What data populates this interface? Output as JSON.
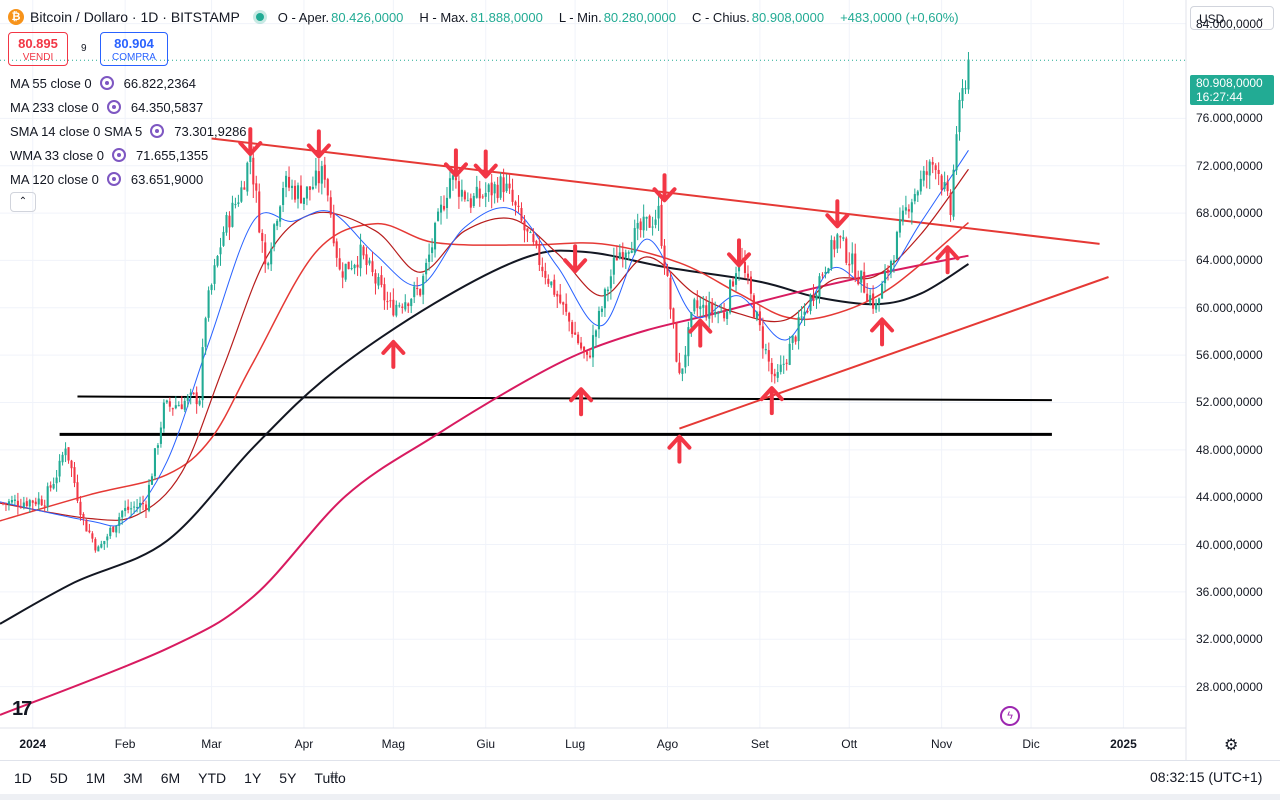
{
  "header": {
    "symbol_title": "Bitcoin / Dollaro · 1D · BITSTAMP",
    "logo_glyph": "₿",
    "ohlc": [
      {
        "label": "O - Aper.",
        "value": "80.426,0000"
      },
      {
        "label": "H - Max.",
        "value": "81.888,0000"
      },
      {
        "label": "L - Min.",
        "value": "80.280,0000"
      },
      {
        "label": "C - Chius.",
        "value": "80.908,0000"
      }
    ],
    "change": "+483,0000 (+0,60%)"
  },
  "trade": {
    "sell_price": "80.895",
    "sell_label": "VENDI",
    "spread": "9",
    "buy_price": "80.904",
    "buy_label": "COMPRA"
  },
  "indicators": [
    {
      "name": "MA 55 close 0",
      "value": "66.822,2364",
      "color": "#e91e63"
    },
    {
      "name": "MA 233 close 0",
      "value": "64.350,5837",
      "color": "#c2185b"
    },
    {
      "name": "SMA 14 close 0 SMA 5",
      "value": "73.301,9286",
      "color": "#2962ff"
    },
    {
      "name": "WMA 33 close 0",
      "value": "71.655,1355",
      "color": "#b71c1c"
    },
    {
      "name": "MA 120 close 0",
      "value": "63.651,9000",
      "color": "#131722"
    }
  ],
  "collapse_glyph": "⌃",
  "currency": {
    "value": "USD",
    "chevron": "⌄"
  },
  "last_price": {
    "price": "80.908,0000",
    "countdown": "16:27:44"
  },
  "bottom": {
    "timeframes": [
      "1D",
      "5D",
      "1M",
      "3M",
      "6M",
      "YTD",
      "1Y",
      "5Y",
      "Tutto"
    ],
    "clock": "08:32:15 (UTC+1)",
    "tv_logo": "17",
    "bolt_glyph": "ϟ",
    "gear_glyph": "⚙",
    "calendar_glyph": "⌗"
  },
  "colors": {
    "up": "#22ab94",
    "down": "#f23645",
    "annotation": "#f23645",
    "trendline": "#e53935",
    "grid": "#f0f3fa"
  },
  "chart_data": {
    "type": "candlestick",
    "y_ticks": [
      "84.000,0000",
      "76.000,0000",
      "72.000,0000",
      "68.000,0000",
      "64.000,0000",
      "60.000,0000",
      "56.000,0000",
      "52.000,0000",
      "48.000,0000",
      "44.000,0000",
      "40.000,0000",
      "36.000,0000",
      "32.000,0000",
      "28.000,0000"
    ],
    "y_tick_values": [
      84000,
      76000,
      72000,
      68000,
      64000,
      60000,
      56000,
      52000,
      48000,
      44000,
      40000,
      36000,
      32000,
      28000
    ],
    "x_ticks": [
      "2024",
      "Feb",
      "Mar",
      "Apr",
      "Mag",
      "Giu",
      "Lug",
      "Ago",
      "Set",
      "Ott",
      "Nov",
      "Dic",
      "2025"
    ],
    "x_tick_dates": [
      "2024-01-01",
      "2024-02-01",
      "2024-03-01",
      "2024-04-01",
      "2024-05-01",
      "2024-06-01",
      "2024-07-01",
      "2024-08-01",
      "2024-09-01",
      "2024-10-01",
      "2024-11-01",
      "2024-12-01",
      "2025-01-01"
    ],
    "x_range": [
      "2023-12-21",
      "2025-01-22"
    ],
    "ylim": [
      24500,
      86000
    ],
    "price_path": [
      [
        "2023-12-22",
        43500
      ],
      [
        "2024-01-05",
        43800
      ],
      [
        "2024-01-10",
        46500
      ],
      [
        "2024-01-12",
        48500
      ],
      [
        "2024-01-18",
        42000
      ],
      [
        "2024-01-23",
        39500
      ],
      [
        "2024-01-31",
        42800
      ],
      [
        "2024-02-08",
        43500
      ],
      [
        "2024-02-14",
        51500
      ],
      [
        "2024-02-20",
        52000
      ],
      [
        "2024-02-26",
        52500
      ],
      [
        "2024-02-28",
        59500
      ],
      [
        "2024-03-05",
        66500
      ],
      [
        "2024-03-11",
        70000
      ],
      [
        "2024-03-14",
        73000
      ],
      [
        "2024-03-19",
        63500
      ],
      [
        "2024-03-25",
        70500
      ],
      [
        "2024-04-01",
        69500
      ],
      [
        "2024-04-08",
        71500
      ],
      [
        "2024-04-13",
        63000
      ],
      [
        "2024-04-20",
        64500
      ],
      [
        "2024-04-30",
        60000
      ],
      [
        "2024-05-10",
        61500
      ],
      [
        "2024-05-20",
        71000
      ],
      [
        "2024-05-27",
        69000
      ],
      [
        "2024-06-07",
        70500
      ],
      [
        "2024-06-15",
        66000
      ],
      [
        "2024-06-25",
        61000
      ],
      [
        "2024-07-05",
        55500
      ],
      [
        "2024-07-15",
        64500
      ],
      [
        "2024-07-29",
        68000
      ],
      [
        "2024-08-05",
        54000
      ],
      [
        "2024-08-10",
        60000
      ],
      [
        "2024-08-20",
        59500
      ],
      [
        "2024-08-25",
        64500
      ],
      [
        "2024-09-06",
        53500
      ],
      [
        "2024-09-15",
        59000
      ],
      [
        "2024-09-27",
        66000
      ],
      [
        "2024-10-10",
        60000
      ],
      [
        "2024-10-21",
        69000
      ],
      [
        "2024-10-30",
        72500
      ],
      [
        "2024-11-04",
        68000
      ],
      [
        "2024-11-06",
        75000
      ],
      [
        "2024-11-10",
        80900
      ]
    ],
    "series": [
      {
        "name": "MA 120 close 0",
        "color": "#131722",
        "width": 2,
        "points": [
          [
            "2023-12-21",
            33300
          ],
          [
            "2024-01-15",
            36800
          ],
          [
            "2024-02-15",
            40300
          ],
          [
            "2024-03-15",
            48200
          ],
          [
            "2024-04-10",
            54400
          ],
          [
            "2024-05-15",
            60400
          ],
          [
            "2024-06-15",
            64300
          ],
          [
            "2024-07-05",
            64700
          ],
          [
            "2024-08-01",
            63400
          ],
          [
            "2024-09-01",
            62200
          ],
          [
            "2024-09-20",
            60900
          ],
          [
            "2024-10-10",
            60300
          ],
          [
            "2024-10-25",
            61200
          ],
          [
            "2024-11-10",
            63700
          ]
        ]
      },
      {
        "name": "MA 233 close 0",
        "color": "#d81b60",
        "width": 2,
        "points": [
          [
            "2023-12-21",
            25600
          ],
          [
            "2024-02-15",
            31200
          ],
          [
            "2024-03-15",
            35600
          ],
          [
            "2024-04-15",
            44100
          ],
          [
            "2024-05-15",
            49200
          ],
          [
            "2024-06-15",
            53900
          ],
          [
            "2024-07-05",
            56400
          ],
          [
            "2024-07-25",
            58100
          ],
          [
            "2024-08-15",
            59400
          ],
          [
            "2024-09-15",
            61400
          ],
          [
            "2024-10-15",
            63100
          ],
          [
            "2024-11-10",
            64400
          ]
        ]
      },
      {
        "name": "MA 55 close 0",
        "color": "#e53935",
        "width": 1.5,
        "points": [
          [
            "2023-12-21",
            42000
          ],
          [
            "2024-01-20",
            44200
          ],
          [
            "2024-02-15",
            45900
          ],
          [
            "2024-03-01",
            49000
          ],
          [
            "2024-03-15",
            55400
          ],
          [
            "2024-04-05",
            64700
          ],
          [
            "2024-04-25",
            67100
          ],
          [
            "2024-05-15",
            65500
          ],
          [
            "2024-06-15",
            65300
          ],
          [
            "2024-07-10",
            65400
          ],
          [
            "2024-08-05",
            63800
          ],
          [
            "2024-08-25",
            61200
          ],
          [
            "2024-09-10",
            59200
          ],
          [
            "2024-09-25",
            59400
          ],
          [
            "2024-10-15",
            61700
          ],
          [
            "2024-11-10",
            67200
          ]
        ]
      },
      {
        "name": "WMA 33 close 0",
        "color": "#b71c1c",
        "width": 1.2,
        "points": [
          [
            "2023-12-21",
            43500
          ],
          [
            "2024-01-20",
            42200
          ],
          [
            "2024-02-05",
            42500
          ],
          [
            "2024-02-20",
            46100
          ],
          [
            "2024-03-05",
            55000
          ],
          [
            "2024-03-20",
            64500
          ],
          [
            "2024-04-05",
            68000
          ],
          [
            "2024-04-25",
            66500
          ],
          [
            "2024-05-10",
            63000
          ],
          [
            "2024-05-25",
            66500
          ],
          [
            "2024-06-10",
            67500
          ],
          [
            "2024-06-25",
            64600
          ],
          [
            "2024-07-10",
            61000
          ],
          [
            "2024-07-25",
            64300
          ],
          [
            "2024-08-10",
            61200
          ],
          [
            "2024-08-25",
            59500
          ],
          [
            "2024-09-10",
            59000
          ],
          [
            "2024-09-25",
            62300
          ],
          [
            "2024-10-10",
            62700
          ],
          [
            "2024-10-25",
            66200
          ],
          [
            "2024-11-10",
            71700
          ]
        ]
      },
      {
        "name": "SMA 14 close 0 SMA 5",
        "color": "#2962ff",
        "width": 1,
        "points": [
          [
            "2023-12-21",
            43600
          ],
          [
            "2024-01-20",
            42000
          ],
          [
            "2024-02-01",
            42000
          ],
          [
            "2024-02-15",
            47000
          ],
          [
            "2024-02-29",
            57000
          ],
          [
            "2024-03-15",
            67300
          ],
          [
            "2024-03-28",
            67300
          ],
          [
            "2024-04-10",
            68100
          ],
          [
            "2024-04-25",
            64500
          ],
          [
            "2024-05-10",
            61900
          ],
          [
            "2024-05-25",
            66800
          ],
          [
            "2024-06-10",
            68300
          ],
          [
            "2024-06-25",
            63500
          ],
          [
            "2024-07-10",
            58500
          ],
          [
            "2024-07-25",
            65800
          ],
          [
            "2024-08-10",
            59300
          ],
          [
            "2024-08-25",
            61000
          ],
          [
            "2024-09-10",
            57300
          ],
          [
            "2024-09-25",
            63300
          ],
          [
            "2024-10-10",
            61700
          ],
          [
            "2024-10-25",
            67200
          ],
          [
            "2024-11-10",
            73300
          ]
        ]
      }
    ],
    "drawings": {
      "support_lines": [
        {
          "from": [
            "2024-01-16",
            52500
          ],
          "to": [
            "2024-12-08",
            52200
          ],
          "color": "#000000",
          "width": 2
        },
        {
          "from": [
            "2024-01-10",
            49300
          ],
          "to": [
            "2024-12-08",
            49300
          ],
          "color": "#000000",
          "width": 3
        }
      ],
      "trend_lines": [
        {
          "from": [
            "2024-03-01",
            74300
          ],
          "to": [
            "2024-12-24",
            65400
          ],
          "color": "#e53935",
          "width": 2
        },
        {
          "from": [
            "2024-08-05",
            49800
          ],
          "to": [
            "2024-12-27",
            62600
          ],
          "color": "#e53935",
          "width": 2
        }
      ],
      "arrows_down": [
        [
          "2024-03-14",
          72900
        ],
        [
          "2024-04-06",
          72700
        ],
        [
          "2024-05-22",
          71100
        ],
        [
          "2024-06-01",
          71000
        ],
        [
          "2024-07-31",
          69000
        ],
        [
          "2024-07-01",
          63000
        ],
        [
          "2024-08-25",
          63500
        ],
        [
          "2024-09-27",
          66800
        ]
      ],
      "arrows_up": [
        [
          "2024-05-01",
          57200
        ],
        [
          "2024-07-03",
          53200
        ],
        [
          "2024-08-05",
          49200
        ],
        [
          "2024-09-05",
          53300
        ],
        [
          "2024-08-12",
          59000
        ],
        [
          "2024-10-12",
          59100
        ],
        [
          "2024-11-03",
          65200
        ]
      ]
    }
  }
}
